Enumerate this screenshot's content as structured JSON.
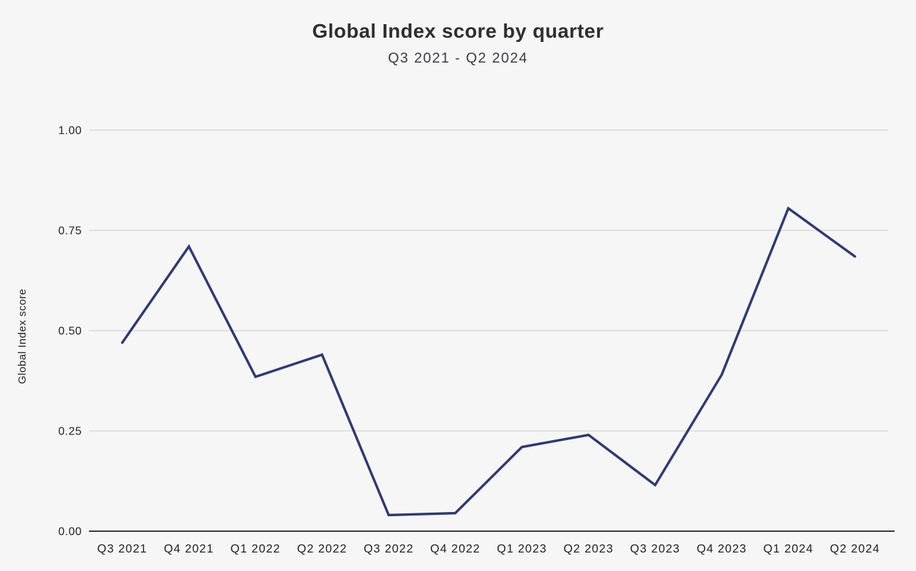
{
  "header": {
    "title": "Global Index score by quarter",
    "subtitle": "Q3 2021 - Q2 2024"
  },
  "chart_data": {
    "type": "line",
    "title": "Global Index score by quarter",
    "subtitle": "Q3 2021 - Q2 2024",
    "xlabel": "",
    "ylabel": "Global Index score",
    "categories": [
      "Q3 2021",
      "Q4 2021",
      "Q1 2022",
      "Q2 2022",
      "Q3 2022",
      "Q4 2022",
      "Q1 2023",
      "Q2 2023",
      "Q3 2023",
      "Q4 2023",
      "Q1 2024",
      "Q2 2024"
    ],
    "series": [
      {
        "name": "Global Index score",
        "values": [
          0.47,
          0.71,
          0.385,
          0.44,
          0.04,
          0.045,
          0.21,
          0.24,
          0.115,
          0.39,
          0.805,
          0.685
        ]
      }
    ],
    "ylim": [
      0,
      1
    ],
    "y_ticks": [
      "0.00",
      "0.25",
      "0.50",
      "0.75",
      "1.00"
    ],
    "grid": "horizontal",
    "legend": "none",
    "colors": {
      "line": "#2f3a6e",
      "grid": "#d9d9d9",
      "axis": "#3a3a3a",
      "background": "#f6f6f7",
      "title_text": "#2e2e33",
      "subtitle_text": "#3c3c42",
      "tick_text": "#222222"
    }
  }
}
